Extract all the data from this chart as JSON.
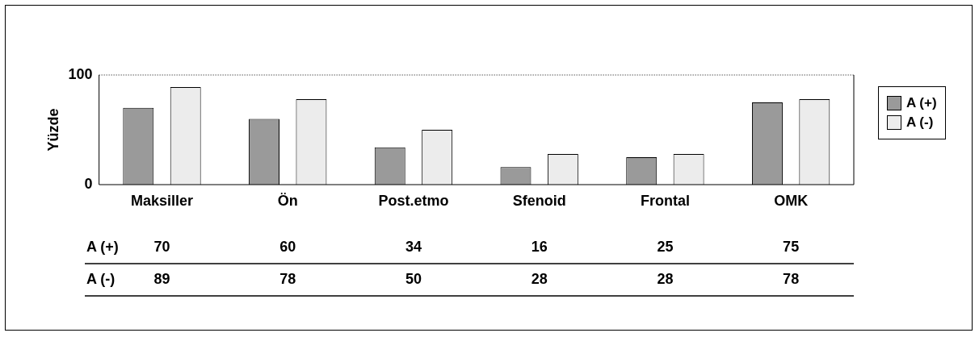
{
  "chart_data": {
    "type": "bar",
    "ylabel": "Yüzde",
    "categories": [
      "Maksiller",
      "Ön",
      "Post.etmo",
      "Sfenoid",
      "Frontal",
      "OMK"
    ],
    "series": [
      {
        "name": "A (+)",
        "color": "#9a9a9a",
        "values": [
          70,
          60,
          34,
          16,
          25,
          75
        ]
      },
      {
        "name": "A (-)",
        "color": "#ececec",
        "values": [
          89,
          78,
          50,
          28,
          28,
          78
        ]
      }
    ],
    "ylim": [
      0,
      100
    ],
    "yticks": [
      0,
      100
    ],
    "grid": false,
    "legend": "right",
    "data_labels": true
  }
}
